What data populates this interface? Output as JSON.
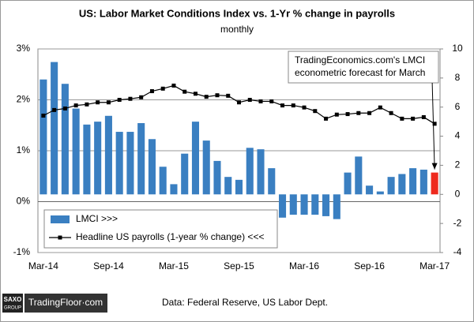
{
  "chart_data": {
    "type": "bar",
    "title": "US: Labor Market Conditions Index vs. 1-Yr % change in payrolls",
    "subtitle": "monthly",
    "categories": [
      "Mar-14",
      null,
      null,
      null,
      null,
      null,
      "Sep-14",
      null,
      null,
      null,
      null,
      null,
      "Mar-15",
      null,
      null,
      null,
      null,
      null,
      "Sep-15",
      null,
      null,
      null,
      null,
      null,
      "Mar-16",
      null,
      null,
      null,
      null,
      null,
      "Sep-16",
      null,
      null,
      null,
      null,
      null,
      "Mar-17"
    ],
    "series": [
      {
        "name": "LMCI >>>",
        "axis": "y2",
        "color": "#3a7fc1",
        "colors": [
          "#3a7fc1",
          "#3a7fc1",
          "#3a7fc1",
          "#3a7fc1",
          "#3a7fc1",
          "#3a7fc1",
          "#3a7fc1",
          "#3a7fc1",
          "#3a7fc1",
          "#3a7fc1",
          "#3a7fc1",
          "#3a7fc1",
          "#3a7fc1",
          "#3a7fc1",
          "#3a7fc1",
          "#3a7fc1",
          "#3a7fc1",
          "#3a7fc1",
          "#3a7fc1",
          "#3a7fc1",
          "#3a7fc1",
          "#3a7fc1",
          "#3a7fc1",
          "#3a7fc1",
          "#3a7fc1",
          "#3a7fc1",
          "#3a7fc1",
          "#3a7fc1",
          "#3a7fc1",
          "#3a7fc1",
          "#3a7fc1",
          "#3a7fc1",
          "#3a7fc1",
          "#3a7fc1",
          "#3a7fc1",
          "#3a7fc1",
          "#ee2a1e"
        ],
        "values": [
          7.9,
          9.1,
          7.6,
          5.9,
          4.8,
          5.0,
          5.4,
          4.3,
          4.3,
          4.9,
          3.8,
          1.9,
          0.7,
          2.8,
          5.0,
          3.7,
          2.3,
          1.2,
          1.0,
          3.2,
          3.1,
          1.8,
          -1.6,
          -1.4,
          -1.4,
          -1.4,
          -1.5,
          -1.7,
          1.5,
          2.6,
          0.6,
          0.2,
          1.2,
          1.4,
          1.8,
          1.7,
          1.5
        ]
      },
      {
        "name": "Headline US payrolls (1-year % change) <<<",
        "type": "line",
        "color": "#000000",
        "values": [
          1.69,
          1.8,
          1.83,
          1.89,
          1.91,
          1.95,
          1.95,
          2.0,
          2.02,
          2.05,
          2.17,
          2.22,
          2.28,
          2.16,
          2.12,
          2.06,
          2.09,
          2.08,
          1.95,
          2.0,
          1.97,
          1.97,
          1.89,
          1.89,
          1.85,
          1.78,
          1.63,
          1.71,
          1.72,
          1.74,
          1.74,
          1.85,
          1.74,
          1.63,
          1.63,
          1.66,
          1.53
        ]
      }
    ],
    "ylim": [
      -1,
      3
    ],
    "yticks": [
      {
        "value": -1,
        "label": "-1%"
      },
      {
        "value": 0,
        "label": "0%"
      },
      {
        "value": 1,
        "label": "1%"
      },
      {
        "value": 2,
        "label": "2%"
      },
      {
        "value": 3,
        "label": "3%"
      }
    ],
    "y2lim": [
      -4,
      10
    ],
    "y2ticks": [
      -4,
      -2,
      0,
      2,
      4,
      6,
      8,
      10
    ],
    "grid": true,
    "legend": "lower left",
    "annotation": [
      "TradingEconomics.com's LMCI",
      "econometric forecast for March"
    ]
  },
  "footer": {
    "logo": "SAXO",
    "logo_sub": "GROUP",
    "brand": "TradingFloor·com",
    "source": "Data: Federal Reserve, US Labor Dept."
  }
}
